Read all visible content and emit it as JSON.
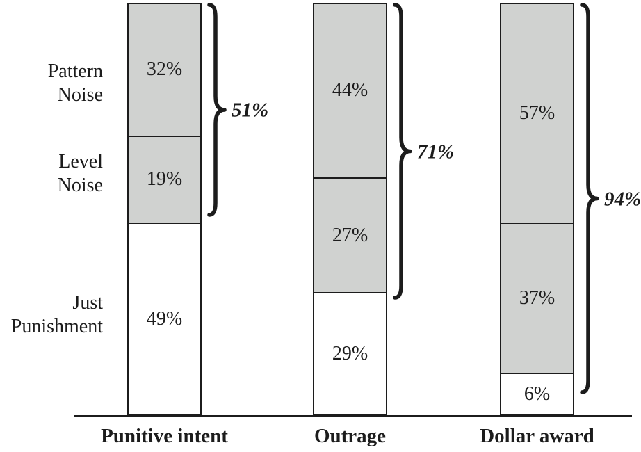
{
  "figure": {
    "colors": {
      "ink": "#1c1c1c",
      "noise_fill": "#d0d2d0",
      "just_punishment_fill": "#ffffff",
      "background": "#ffffff"
    }
  },
  "chart_data": {
    "type": "bar",
    "variant": "stacked-percentage",
    "title": "",
    "xlabel": "",
    "ylabel": "",
    "ylim": [
      0,
      100
    ],
    "grid": false,
    "legend": "none",
    "categories": [
      "Punitive intent",
      "Outrage",
      "Dollar award"
    ],
    "series": [
      {
        "name": "Pattern Noise",
        "stack_position": "top",
        "fill": "#d0d2d0",
        "values": [
          32,
          44,
          57
        ],
        "labels": [
          "32%",
          "44%",
          "57%"
        ]
      },
      {
        "name": "Level Noise",
        "stack_position": "middle",
        "fill": "#d0d2d0",
        "values": [
          19,
          27,
          37
        ],
        "labels": [
          "19%",
          "27%",
          "37%"
        ]
      },
      {
        "name": "Just Punishment",
        "stack_position": "bottom",
        "fill": "#ffffff",
        "values": [
          49,
          29,
          6
        ],
        "labels": [
          "49%",
          "29%",
          "6%"
        ]
      }
    ],
    "row_labels": [
      {
        "name": "pattern-noise",
        "lines": [
          "Pattern",
          "Noise"
        ]
      },
      {
        "name": "level-noise",
        "lines": [
          "Level",
          "Noise"
        ]
      },
      {
        "name": "just-punishment",
        "lines": [
          "Just",
          "Punishment"
        ]
      }
    ],
    "brace_annotations": {
      "meaning": "total noise share (Pattern Noise + Level Noise)",
      "values": [
        51,
        71,
        94
      ],
      "labels": [
        "51%",
        "71%",
        "94%"
      ]
    }
  }
}
